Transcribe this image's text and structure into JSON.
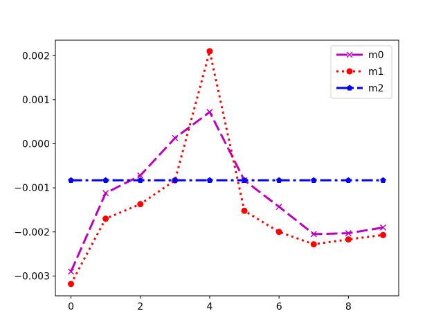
{
  "chart_data": {
    "type": "line",
    "title": "",
    "xlabel": "",
    "ylabel": "",
    "x": [
      0,
      1,
      2,
      3,
      4,
      5,
      6,
      7,
      8,
      9
    ],
    "xlim": [
      -0.45,
      9.45
    ],
    "ylim": [
      -0.00345,
      0.00235
    ],
    "xticks": [
      0,
      2,
      4,
      6,
      8
    ],
    "xtick_labels": [
      "0",
      "2",
      "4",
      "6",
      "8"
    ],
    "yticks": [
      -0.003,
      -0.002,
      -0.001,
      0.0,
      0.001,
      0.002
    ],
    "ytick_labels": [
      "−0.003",
      "−0.002",
      "−0.001",
      "0.000",
      "0.001",
      "0.002"
    ],
    "grid": false,
    "legend": "top-right",
    "series": [
      {
        "name": "m0",
        "color": "#bf00bf",
        "linestyle": "dashed",
        "marker": "x",
        "values": [
          -0.0029,
          -0.00112,
          -0.00072,
          0.00013,
          0.00072,
          -0.00083,
          -0.00143,
          -0.00205,
          -0.00203,
          -0.0019
        ]
      },
      {
        "name": "m1",
        "color": "#ff0000",
        "linestyle": "dotted",
        "marker": "circle",
        "values": [
          -0.00318,
          -0.0017,
          -0.00137,
          -0.00083,
          0.0021,
          -0.00152,
          -0.002,
          -0.00228,
          -0.00217,
          -0.00207
        ]
      },
      {
        "name": "m2",
        "color": "#0000ff",
        "linestyle": "dashdot",
        "marker": "pentagon",
        "values": [
          -0.00083,
          -0.00083,
          -0.00083,
          -0.00083,
          -0.00083,
          -0.00083,
          -0.00083,
          -0.00083,
          -0.00083,
          -0.00083
        ]
      }
    ]
  }
}
